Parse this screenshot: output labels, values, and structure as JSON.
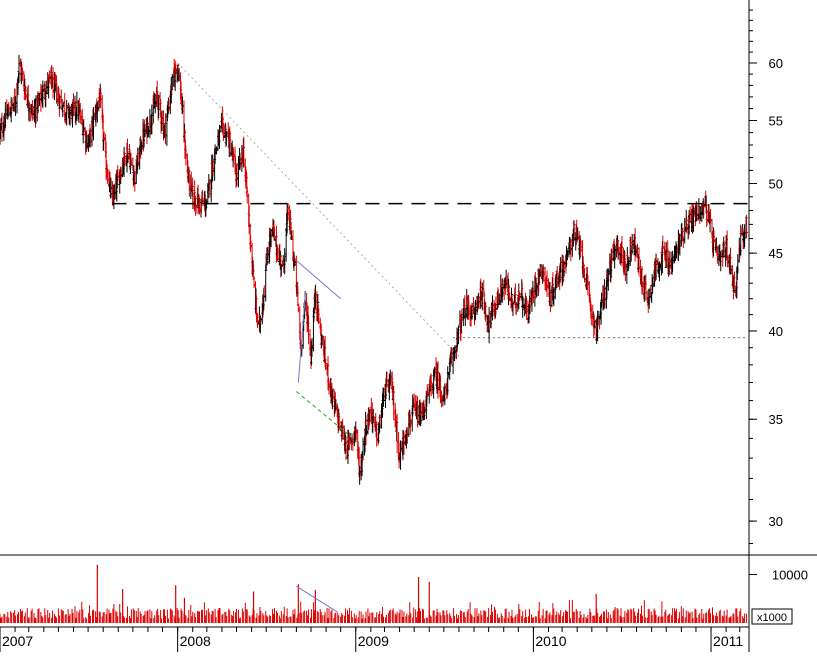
{
  "chart_data": {
    "type": "line",
    "title": "",
    "xlabel": "",
    "ylabel": "",
    "price_axis": {
      "scale": "log",
      "ylim": [
        28.5,
        66
      ],
      "ticks": [
        30,
        35,
        40,
        45,
        50,
        55,
        60
      ]
    },
    "time_axis": {
      "xlim": [
        "2007-01-01",
        "2011-03-20"
      ],
      "year_labels": [
        {
          "label": "2007",
          "date": "2007-01-01"
        },
        {
          "label": "2008",
          "date": "2008-01-01"
        },
        {
          "label": "2009",
          "date": "2009-01-01"
        },
        {
          "label": "2010",
          "date": "2010-01-01"
        },
        {
          "label": "2011",
          "date": "2011-01-01"
        }
      ]
    },
    "volume_axis": {
      "ticks": [
        10000
      ],
      "unit_label": "x1000",
      "ylim": [
        0,
        13000
      ]
    },
    "price_series": [
      [
        "2007-01-01",
        54.0
      ],
      [
        "2007-01-15",
        55.5
      ],
      [
        "2007-02-01",
        56.5
      ],
      [
        "2007-02-10",
        60.0
      ],
      [
        "2007-02-25",
        57.0
      ],
      [
        "2007-03-10",
        55.5
      ],
      [
        "2007-04-01",
        57.5
      ],
      [
        "2007-04-15",
        58.5
      ],
      [
        "2007-05-01",
        57.0
      ],
      [
        "2007-05-20",
        55.5
      ],
      [
        "2007-06-10",
        56.0
      ],
      [
        "2007-07-01",
        53.0
      ],
      [
        "2007-07-15",
        55.5
      ],
      [
        "2007-07-25",
        57.0
      ],
      [
        "2007-08-05",
        52.0
      ],
      [
        "2007-08-20",
        48.5
      ],
      [
        "2007-09-05",
        51.0
      ],
      [
        "2007-09-20",
        52.5
      ],
      [
        "2007-10-05",
        50.5
      ],
      [
        "2007-10-20",
        53.5
      ],
      [
        "2007-11-05",
        55.0
      ],
      [
        "2007-11-20",
        57.0
      ],
      [
        "2007-12-05",
        54.0
      ],
      [
        "2007-12-20",
        58.0
      ],
      [
        "2008-01-01",
        60.0
      ],
      [
        "2008-01-10",
        56.0
      ],
      [
        "2008-01-20",
        51.0
      ],
      [
        "2008-02-01",
        49.0
      ],
      [
        "2008-02-15",
        48.5
      ],
      [
        "2008-03-01",
        48.5
      ],
      [
        "2008-03-15",
        52.0
      ],
      [
        "2008-04-01",
        54.5
      ],
      [
        "2008-04-15",
        53.5
      ],
      [
        "2008-05-01",
        50.5
      ],
      [
        "2008-05-15",
        52.5
      ],
      [
        "2008-05-25",
        48.0
      ],
      [
        "2008-06-05",
        43.0
      ],
      [
        "2008-06-15",
        40.0
      ],
      [
        "2008-06-25",
        42.0
      ],
      [
        "2008-07-05",
        45.5
      ],
      [
        "2008-07-15",
        46.5
      ],
      [
        "2008-07-25",
        45.0
      ],
      [
        "2008-08-05",
        44.0
      ],
      [
        "2008-08-15",
        48.0
      ],
      [
        "2008-08-25",
        45.0
      ],
      [
        "2008-09-01",
        43.0
      ],
      [
        "2008-09-10",
        39.0
      ],
      [
        "2008-09-20",
        42.0
      ],
      [
        "2008-10-01",
        38.5
      ],
      [
        "2008-10-10",
        42.5
      ],
      [
        "2008-10-20",
        40.0
      ],
      [
        "2008-11-01",
        38.0
      ],
      [
        "2008-11-15",
        36.0
      ],
      [
        "2008-12-01",
        34.5
      ],
      [
        "2008-12-15",
        33.5
      ],
      [
        "2009-01-01",
        34.5
      ],
      [
        "2009-01-10",
        32.0
      ],
      [
        "2009-01-20",
        34.5
      ],
      [
        "2009-02-01",
        35.5
      ],
      [
        "2009-02-15",
        34.0
      ],
      [
        "2009-03-01",
        36.5
      ],
      [
        "2009-03-15",
        37.0
      ],
      [
        "2009-04-01",
        33.0
      ],
      [
        "2009-04-15",
        34.5
      ],
      [
        "2009-05-01",
        35.5
      ],
      [
        "2009-05-15",
        35.0
      ],
      [
        "2009-06-01",
        36.5
      ],
      [
        "2009-06-15",
        37.5
      ],
      [
        "2009-07-01",
        36.0
      ],
      [
        "2009-07-15",
        38.0
      ],
      [
        "2009-08-01",
        40.0
      ],
      [
        "2009-08-15",
        41.5
      ],
      [
        "2009-09-01",
        41.0
      ],
      [
        "2009-09-15",
        42.5
      ],
      [
        "2009-10-01",
        40.5
      ],
      [
        "2009-10-20",
        42.0
      ],
      [
        "2009-11-05",
        43.0
      ],
      [
        "2009-11-20",
        41.5
      ],
      [
        "2009-12-05",
        42.5
      ],
      [
        "2009-12-20",
        41.0
      ],
      [
        "2010-01-05",
        43.0
      ],
      [
        "2010-01-20",
        44.0
      ],
      [
        "2010-02-05",
        42.0
      ],
      [
        "2010-02-20",
        43.5
      ],
      [
        "2010-03-10",
        44.5
      ],
      [
        "2010-03-25",
        46.5
      ],
      [
        "2010-04-10",
        45.0
      ],
      [
        "2010-04-25",
        42.0
      ],
      [
        "2010-05-10",
        40.0
      ],
      [
        "2010-05-25",
        42.0
      ],
      [
        "2010-06-10",
        44.5
      ],
      [
        "2010-06-25",
        45.5
      ],
      [
        "2010-07-10",
        44.0
      ],
      [
        "2010-07-25",
        46.0
      ],
      [
        "2010-08-10",
        43.5
      ],
      [
        "2010-08-25",
        42.0
      ],
      [
        "2010-09-10",
        44.0
      ],
      [
        "2010-09-25",
        45.0
      ],
      [
        "2010-10-10",
        44.0
      ],
      [
        "2010-10-25",
        45.5
      ],
      [
        "2010-11-10",
        47.0
      ],
      [
        "2010-11-25",
        47.5
      ],
      [
        "2010-12-10",
        48.0
      ],
      [
        "2010-12-20",
        48.5
      ],
      [
        "2011-01-01",
        46.5
      ],
      [
        "2011-01-10",
        45.0
      ],
      [
        "2011-01-20",
        44.5
      ],
      [
        "2011-02-01",
        45.5
      ],
      [
        "2011-02-10",
        44.0
      ],
      [
        "2011-02-20",
        42.5
      ],
      [
        "2011-03-01",
        45.5
      ],
      [
        "2011-03-15",
        47.0
      ]
    ],
    "annotations": {
      "resistance_level": {
        "value": 48.5,
        "from": "2007-08-20",
        "to": "2011-03-20",
        "style": "long-dash",
        "color": "#000000"
      },
      "support_level": {
        "value": 39.6,
        "from": "2009-07-20",
        "to": "2011-03-15",
        "style": "dotted",
        "color": "#777777"
      },
      "downtrend_line": {
        "from": [
          "2008-01-01",
          60.0
        ],
        "to": [
          "2009-08-01",
          38.5
        ],
        "style": "dotted",
        "color": "#999999"
      },
      "channel_upper": {
        "from": [
          "2008-09-01",
          44.5
        ],
        "to": [
          "2008-12-01",
          42.0
        ],
        "color": "#7777cc"
      },
      "channel_lower": {
        "from": [
          "2008-09-01",
          36.5
        ],
        "to": [
          "2009-01-05",
          33.8
        ],
        "style": "dashed",
        "color": "#22aa22"
      },
      "channel_side": {
        "from": [
          "2008-09-05",
          37.0
        ],
        "to": [
          "2008-09-20",
          42.5
        ],
        "color": "#7777cc"
      },
      "volume_trend": {
        "from": [
          "2008-09-01",
          7600
        ],
        "to": [
          "2008-11-25",
          2200
        ],
        "color": "#7777cc"
      }
    },
    "volume_spikes": [
      [
        "2007-07-20",
        12000
      ],
      [
        "2007-09-10",
        7000
      ],
      [
        "2007-12-28",
        7800
      ],
      [
        "2008-01-15",
        5200
      ],
      [
        "2008-06-05",
        6500
      ],
      [
        "2008-09-05",
        8000
      ],
      [
        "2008-10-10",
        6800
      ],
      [
        "2009-05-10",
        9500
      ],
      [
        "2009-06-01",
        8500
      ],
      [
        "2010-05-10",
        6000
      ]
    ],
    "colors": {
      "up": "#000000",
      "down": "#dd0000",
      "volume": "#dd0000",
      "axis": "#000000"
    }
  }
}
